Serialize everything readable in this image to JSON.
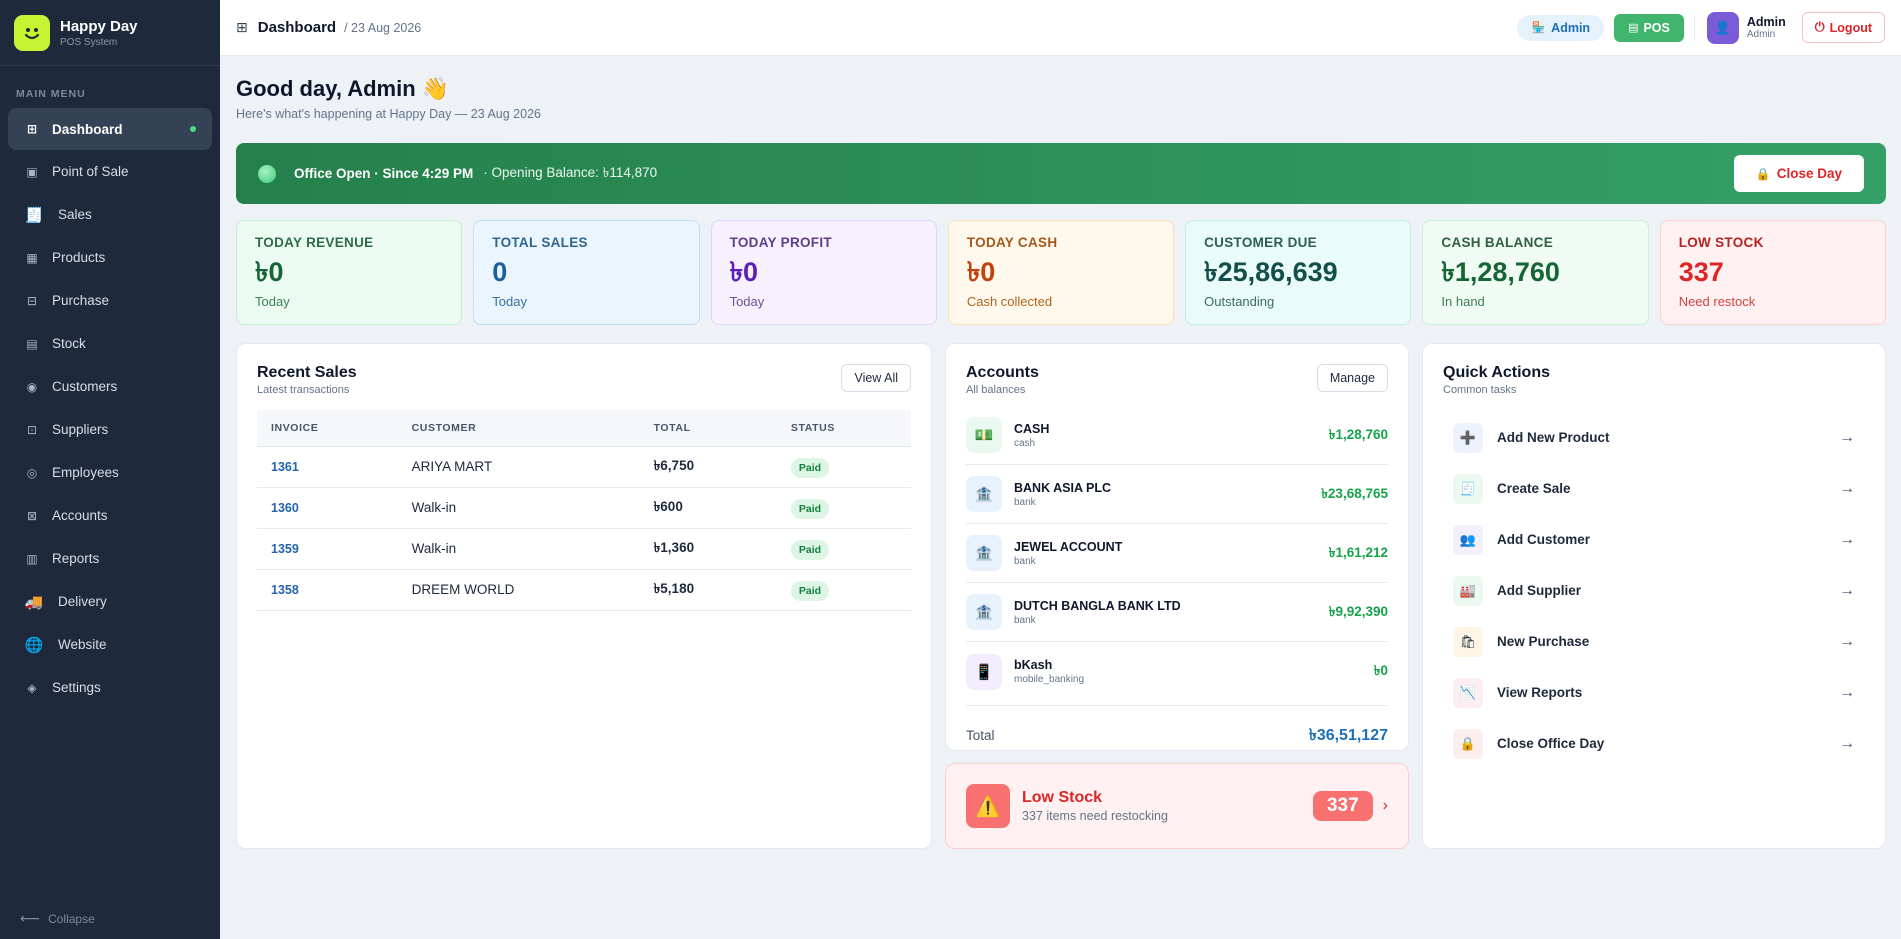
{
  "brand": {
    "name": "Happy Day",
    "subtitle": "POS System"
  },
  "sidebar": {
    "section_label": "MAIN MENU",
    "items": [
      {
        "label": "Dashboard",
        "icon": "grid-icon",
        "glyph": "⊞",
        "active": true
      },
      {
        "label": "Point of Sale",
        "icon": "pos-icon",
        "glyph": "▣"
      },
      {
        "label": "Sales",
        "icon": "receipt-icon",
        "glyph": "🧾"
      },
      {
        "label": "Products",
        "icon": "table-icon",
        "glyph": "▦"
      },
      {
        "label": "Purchase",
        "icon": "purchase-icon",
        "glyph": "⊟"
      },
      {
        "label": "Stock",
        "icon": "stock-icon",
        "glyph": "▤"
      },
      {
        "label": "Customers",
        "icon": "customers-icon",
        "glyph": "◉"
      },
      {
        "label": "Suppliers",
        "icon": "suppliers-icon",
        "glyph": "⊡"
      },
      {
        "label": "Employees",
        "icon": "employees-icon",
        "glyph": "◎"
      },
      {
        "label": "Accounts",
        "icon": "accounts-icon",
        "glyph": "⊠"
      },
      {
        "label": "Reports",
        "icon": "reports-icon",
        "glyph": "▥"
      },
      {
        "label": "Delivery",
        "icon": "truck-icon",
        "glyph": "🚚"
      },
      {
        "label": "Website",
        "icon": "globe-icon",
        "glyph": "🌐"
      },
      {
        "label": "Settings",
        "icon": "settings-icon",
        "glyph": "◈"
      }
    ],
    "collapse_label": "Collapse"
  },
  "header": {
    "title": "Dashboard",
    "date": "/ 23 Aug 2026",
    "admin_pill": "Admin",
    "pos_pill": "POS",
    "user_name": "Admin",
    "user_role": "Admin",
    "logout_label": "Logout"
  },
  "greeting": {
    "title": "Good day, Admin 👋",
    "subtitle": "Here's what's happening at Happy Day — 23 Aug 2026"
  },
  "banner": {
    "status": "Office Open · Since 4:29 PM",
    "opening_balance": "· Opening Balance: ৳114,870",
    "close_label": "Close Day"
  },
  "stats": [
    {
      "label": "TODAY REVENUE",
      "value": "৳0",
      "sub": "Today",
      "colors": {
        "bg": "#ecfbf1",
        "border": "#c5efd4",
        "label": "#2f6b4a",
        "value": "#166534",
        "sub": "#3f7d5a"
      }
    },
    {
      "label": "TOTAL SALES",
      "value": "0",
      "sub": "Today",
      "colors": {
        "bg": "#eaf5fd",
        "border": "#bfdff6",
        "label": "#2f6591",
        "value": "#1d5fa0",
        "sub": "#3a6f9c"
      }
    },
    {
      "label": "TODAY PROFIT",
      "value": "৳0",
      "sub": "Today",
      "colors": {
        "bg": "#f7f1fe",
        "border": "#e3d4f8",
        "label": "#5b3f8c",
        "value": "#5b21b6",
        "sub": "#6b4f99"
      }
    },
    {
      "label": "TODAY CASH",
      "value": "৳0",
      "sub": "Cash collected",
      "colors": {
        "bg": "#fff8ec",
        "border": "#f9e0b8",
        "label": "#a4591b",
        "value": "#c2410c",
        "sub": "#b0641f"
      }
    },
    {
      "label": "CUSTOMER DUE",
      "value": "৳25,86,639",
      "sub": "Outstanding",
      "colors": {
        "bg": "#eafcf8",
        "border": "#bfeee2",
        "label": "#2c5e55",
        "value": "#134e4a",
        "sub": "#3e6b62"
      }
    },
    {
      "label": "CASH BALANCE",
      "value": "৳1,28,760",
      "sub": "In hand",
      "colors": {
        "bg": "#f0fcf3",
        "border": "#c9efd4",
        "label": "#2f5e45",
        "value": "#166534",
        "sub": "#3f7d5a"
      }
    },
    {
      "label": "LOW STOCK",
      "value": "337",
      "sub": "Need restock",
      "colors": {
        "bg": "#fff1f1",
        "border": "#f9d2d2",
        "label": "#b42323",
        "value": "#dc2626",
        "sub": "#d14343"
      }
    }
  ],
  "recent_sales": {
    "title": "Recent Sales",
    "subtitle": "Latest transactions",
    "view_all": "View All",
    "columns": [
      "INVOICE",
      "CUSTOMER",
      "TOTAL",
      "STATUS"
    ],
    "rows": [
      {
        "invoice": "1361",
        "customer": "ARIYA MART",
        "total": "৳6,750",
        "status": "Paid"
      },
      {
        "invoice": "1360",
        "customer": "Walk-in",
        "total": "৳600",
        "status": "Paid"
      },
      {
        "invoice": "1359",
        "customer": "Walk-in",
        "total": "৳1,360",
        "status": "Paid"
      },
      {
        "invoice": "1358",
        "customer": "DREEM WORLD",
        "total": "৳5,180",
        "status": "Paid"
      }
    ]
  },
  "accounts": {
    "title": "Accounts",
    "subtitle": "All balances",
    "manage_label": "Manage",
    "items": [
      {
        "name": "CASH",
        "type": "cash",
        "amount": "৳1,28,760",
        "icon": "cash-icon",
        "glyph": "💵",
        "bg": "#e9f9ef"
      },
      {
        "name": "BANK ASIA PLC",
        "type": "bank",
        "amount": "৳23,68,765",
        "icon": "bank-icon",
        "glyph": "🏦",
        "bg": "#e8f2fc"
      },
      {
        "name": "JEWEL ACCOUNT",
        "type": "bank",
        "amount": "৳1,61,212",
        "icon": "bank-icon",
        "glyph": "🏦",
        "bg": "#e8f2fc"
      },
      {
        "name": "DUTCH BANGLA BANK LTD",
        "type": "bank",
        "amount": "৳9,92,390",
        "icon": "bank-icon",
        "glyph": "🏦",
        "bg": "#e8f2fc"
      },
      {
        "name": "bKash",
        "type": "mobile_banking",
        "amount": "৳0",
        "icon": "mobile-icon",
        "glyph": "📱",
        "bg": "#f3ecfd"
      }
    ],
    "total_label": "Total",
    "total_amount": "৳36,51,127"
  },
  "low_stock": {
    "title": "Low Stock",
    "subtitle": "337 items need restocking",
    "count": "337"
  },
  "quick_actions": {
    "title": "Quick Actions",
    "subtitle": "Common tasks",
    "items": [
      {
        "label": "Add New Product",
        "icon": "plus-icon",
        "glyph": "➕",
        "bg": "#eef2fc"
      },
      {
        "label": "Create Sale",
        "icon": "receipt-icon",
        "glyph": "🧾",
        "bg": "#ecf9f0"
      },
      {
        "label": "Add Customer",
        "icon": "users-icon",
        "glyph": "👥",
        "bg": "#f3effb"
      },
      {
        "label": "Add Supplier",
        "icon": "factory-icon",
        "glyph": "🏭",
        "bg": "#ecf9f0"
      },
      {
        "label": "New Purchase",
        "icon": "cart-icon",
        "glyph": "🛍",
        "bg": "#fdf6e6"
      },
      {
        "label": "View Reports",
        "icon": "chart-icon",
        "glyph": "📉",
        "bg": "#fdeef3"
      },
      {
        "label": "Close Office Day",
        "icon": "lock-icon",
        "glyph": "🔒",
        "bg": "#fdeeee"
      }
    ]
  }
}
